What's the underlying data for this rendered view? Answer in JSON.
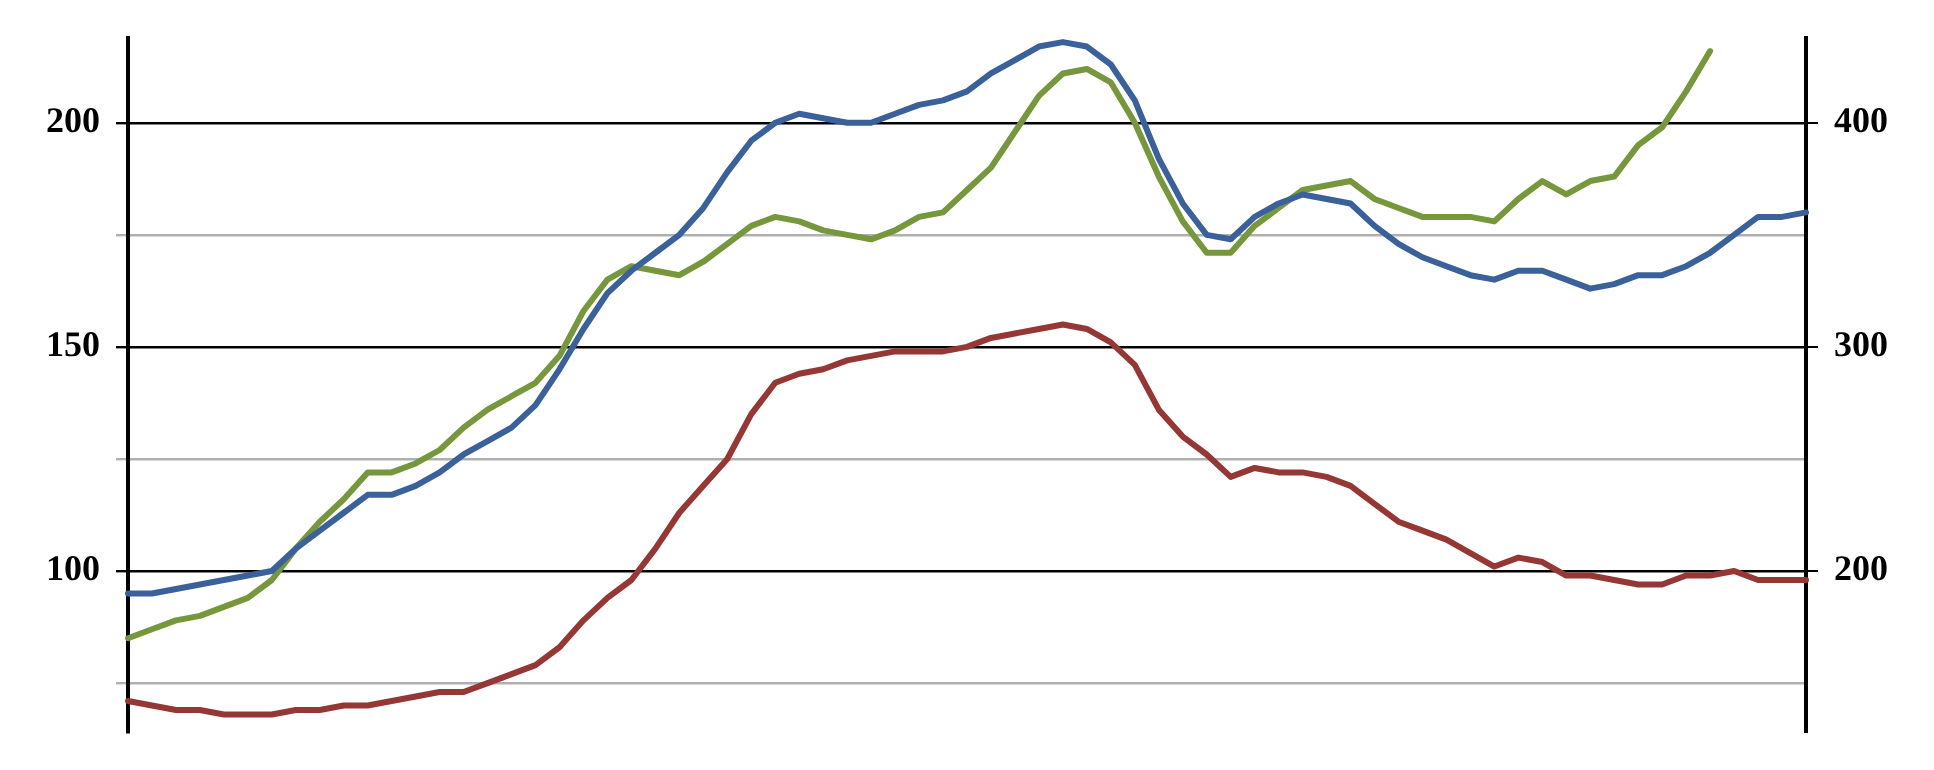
{
  "chart_data": {
    "type": "line",
    "categories": [
      null,
      null,
      null,
      null,
      null,
      null,
      null,
      null,
      null,
      null,
      null,
      null,
      null,
      null,
      null,
      null,
      null,
      null,
      null,
      null,
      null,
      null,
      null,
      null,
      null,
      null,
      null,
      null,
      null,
      null,
      null,
      null,
      null,
      null,
      null,
      null,
      null,
      null,
      null,
      null,
      null,
      null,
      null,
      null,
      null,
      null,
      null,
      null,
      null,
      null,
      null,
      null,
      null,
      null,
      null,
      null,
      null,
      null,
      null,
      null,
      null,
      null,
      null,
      null,
      null,
      null,
      null,
      null,
      null,
      null,
      null
    ],
    "series": [
      {
        "color": "#3a6199",
        "values": [
          95,
          95,
          96,
          97,
          98,
          99,
          100,
          105,
          109,
          113,
          117,
          117,
          119,
          122,
          126,
          129,
          132,
          137,
          145,
          154,
          162,
          167,
          171,
          175,
          181,
          189,
          196,
          200,
          202,
          201,
          200,
          200,
          202,
          204,
          205,
          207,
          211,
          214,
          217,
          218,
          217,
          213,
          205,
          192,
          182,
          175,
          174,
          179,
          182,
          184,
          183,
          182,
          177,
          173,
          170,
          168,
          166,
          165,
          167,
          167,
          165,
          163,
          164,
          166,
          166,
          168,
          171,
          175,
          179,
          179,
          180
        ]
      },
      {
        "color": "#77973d",
        "values": [
          85,
          87,
          89,
          90,
          92,
          94,
          98,
          105,
          111,
          116,
          122,
          122,
          124,
          127,
          132,
          136,
          139,
          142,
          148,
          158,
          165,
          168,
          167,
          166,
          169,
          173,
          177,
          179,
          178,
          176,
          175,
          174,
          176,
          179,
          180,
          185,
          190,
          198,
          206,
          211,
          212,
          209,
          200,
          188,
          178,
          171,
          171,
          177,
          181,
          185,
          186,
          187,
          183,
          181,
          179,
          179,
          179,
          178,
          183,
          187,
          184,
          187,
          188,
          195,
          199,
          207,
          216,
          null,
          null,
          null,
          null
        ]
      },
      {
        "color": "#953735",
        "values": [
          71,
          70,
          69,
          69,
          68,
          68,
          68,
          69,
          69,
          70,
          70,
          71,
          72,
          73,
          73,
          75,
          77,
          79,
          83,
          89,
          94,
          98,
          105,
          113,
          119,
          125,
          135,
          142,
          144,
          145,
          147,
          148,
          149,
          149,
          149,
          150,
          152,
          153,
          154,
          155,
          154,
          151,
          146,
          136,
          130,
          126,
          121,
          123,
          122,
          122,
          121,
          119,
          115,
          111,
          109,
          107,
          104,
          101,
          103,
          102,
          99,
          99,
          98,
          97,
          97,
          99,
          99,
          100,
          98,
          98,
          98
        ]
      }
    ],
    "ylim": [
      64,
      219
    ],
    "yticks": [
      {
        "value": 75,
        "label": null
      },
      100,
      {
        "value": 125,
        "label": null
      },
      150,
      {
        "value": 175,
        "label": null
      },
      200
    ],
    "y2lim": [
      128,
      438
    ],
    "y2ticks": [
      200,
      300,
      400
    ],
    "grid": "y",
    "legend": false,
    "marker": "none",
    "line_style": "solid"
  }
}
